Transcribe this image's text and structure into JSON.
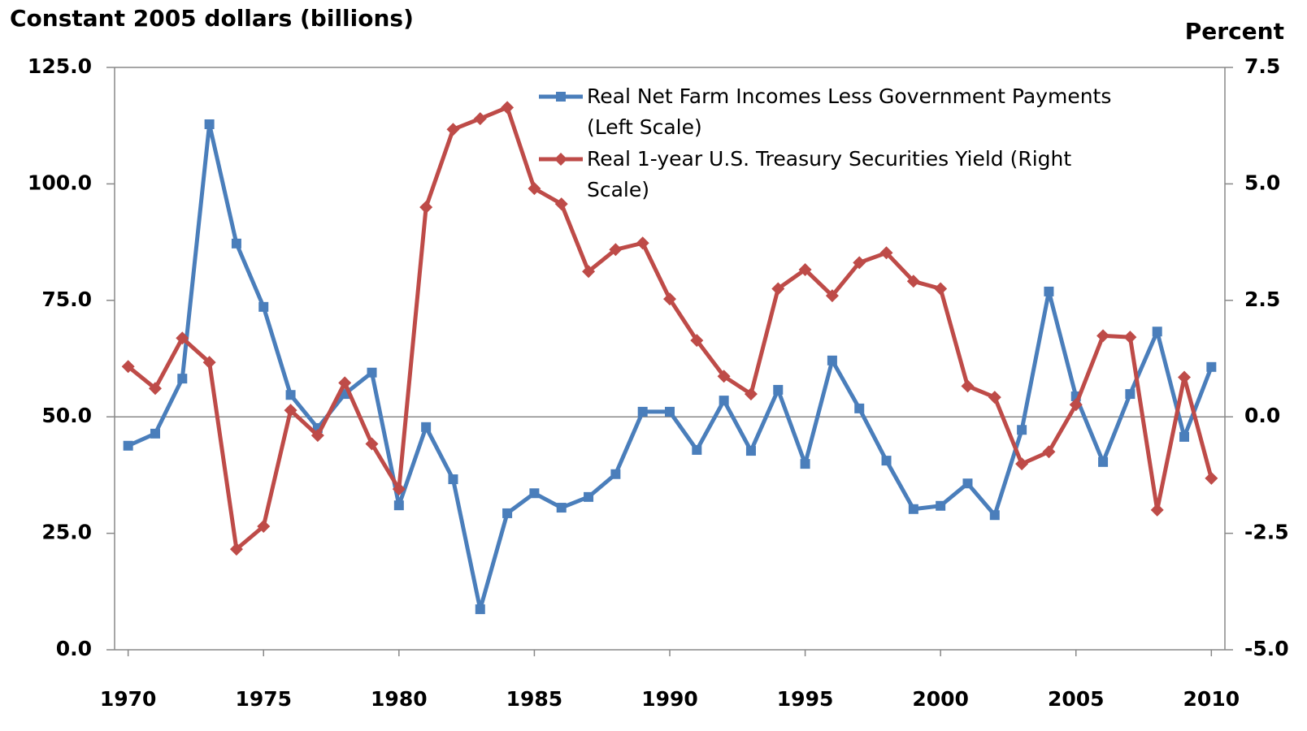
{
  "chart_data": {
    "type": "line",
    "y_label": "Constant 2005 dollars (billions)",
    "y2_label": "Percent",
    "x": [
      1970,
      1971,
      1972,
      1973,
      1974,
      1975,
      1976,
      1977,
      1978,
      1979,
      1980,
      1981,
      1982,
      1983,
      1984,
      1985,
      1986,
      1987,
      1988,
      1989,
      1990,
      1991,
      1992,
      1993,
      1994,
      1995,
      1996,
      1997,
      1998,
      1999,
      2000,
      2001,
      2002,
      2003,
      2004,
      2005,
      2006,
      2007,
      2008,
      2009,
      2010
    ],
    "xlim": [
      1969.5,
      2010.5
    ],
    "xticks": [
      1970,
      1975,
      1980,
      1985,
      1990,
      1995,
      2000,
      2005,
      2010
    ],
    "ylim": [
      0,
      125
    ],
    "yticks": [
      {
        "value": 0,
        "label": "0.0"
      },
      {
        "value": 25,
        "label": "25.0"
      },
      {
        "value": 50,
        "label": "50.0"
      },
      {
        "value": 75,
        "label": "75.0"
      },
      {
        "value": 100,
        "label": "100.0"
      },
      {
        "value": 125,
        "label": "125.0"
      }
    ],
    "y2lim": [
      -5,
      7.5
    ],
    "y2ticks": [
      {
        "value": -5,
        "label": "-5.0"
      },
      {
        "value": -2.5,
        "label": "-2.5"
      },
      {
        "value": 0,
        "label": "0.0"
      },
      {
        "value": 2.5,
        "label": "2.5"
      },
      {
        "value": 5,
        "label": "5.0"
      },
      {
        "value": 7.5,
        "label": "7.5"
      }
    ],
    "series": [
      {
        "name": "Real Net Farm Incomes Less Government Payments (Left Scale)",
        "color": "#4a7ebb",
        "marker": "square",
        "values": [
          43.8,
          46.4,
          58.2,
          112.8,
          87.2,
          73.6,
          54.7,
          47.6,
          54.9,
          59.5,
          31.0,
          47.8,
          36.6,
          8.7,
          29.3,
          33.6,
          30.5,
          32.8,
          37.7,
          51.1,
          51.1,
          42.9,
          53.5,
          42.7,
          55.8,
          39.9,
          62.1,
          51.8,
          40.6,
          30.2,
          30.9,
          35.7,
          28.9,
          47.2,
          76.9,
          54.4,
          40.3,
          54.9,
          68.3,
          45.7,
          60.7
        ]
      },
      {
        "name": "Real 1-year U.S. Treasury Securities Yield (Right Scale)",
        "color": "#be4b48",
        "marker": "diamond",
        "axis": "y2",
        "values": [
          1.08,
          0.61,
          1.69,
          1.17,
          -2.84,
          -2.35,
          0.14,
          -0.4,
          0.73,
          -0.58,
          -1.55,
          4.5,
          6.17,
          6.4,
          6.64,
          4.9,
          4.57,
          3.12,
          3.59,
          3.73,
          2.53,
          1.64,
          0.87,
          0.49,
          2.75,
          3.16,
          2.6,
          3.31,
          3.52,
          2.91,
          2.75,
          0.66,
          0.42,
          -1.01,
          -0.75,
          0.26,
          1.74,
          1.71,
          -2.0,
          0.85,
          -1.32
        ]
      }
    ]
  }
}
